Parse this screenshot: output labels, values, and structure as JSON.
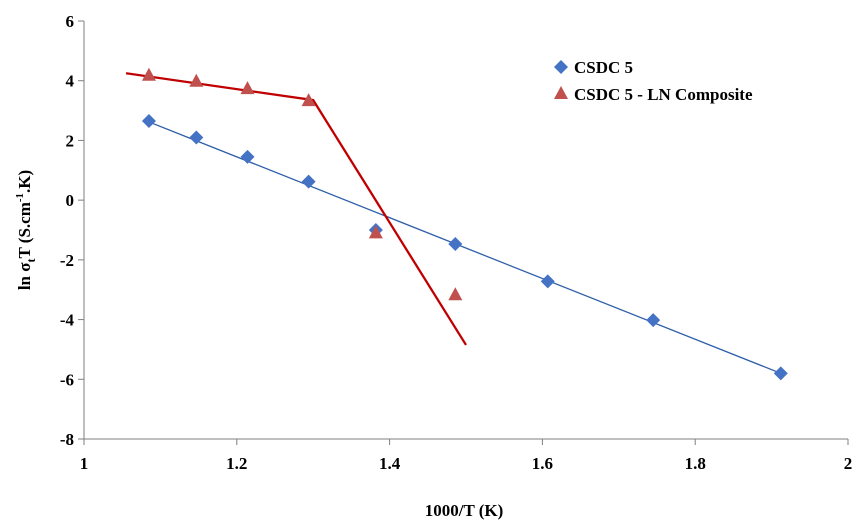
{
  "chart_data": {
    "type": "scatter",
    "xlabel": "1000/T (K)",
    "ylabel": {
      "prefix": "ln σ",
      "sub": "t",
      "mid": "T  (S.cm",
      "sup": "-1",
      "suffix": ".K)"
    },
    "xlim": [
      1,
      2
    ],
    "ylim": [
      -8,
      6
    ],
    "x_ticks": [
      1,
      1.2,
      1.4,
      1.6,
      1.8,
      2
    ],
    "x_tick_labels": [
      "1",
      "1.2",
      "1.4",
      "1.6",
      "1.8",
      "2"
    ],
    "y_ticks": [
      -8,
      -6,
      -4,
      -2,
      0,
      2,
      4,
      6
    ],
    "y_tick_labels": [
      "-8",
      "-6",
      "-4",
      "-2",
      "0",
      "2",
      "4",
      "6"
    ],
    "grid": false,
    "legend_position": "top-right",
    "series": [
      {
        "name": "CSDC 5",
        "marker": "diamond",
        "color": "#4472C4",
        "line_color": "#2E5FA8",
        "x": [
          1.085,
          1.147,
          1.214,
          1.294,
          1.382,
          1.486,
          1.607,
          1.745,
          1.912
        ],
        "y": [
          2.65,
          2.1,
          1.45,
          0.62,
          -1.0,
          -1.47,
          -2.72,
          -4.02,
          -5.8
        ],
        "fit_line": {
          "x": [
            1.085,
            1.912
          ],
          "y": [
            2.62,
            -5.8
          ]
        }
      },
      {
        "name": "CSDC 5 - LN Composite",
        "marker": "triangle",
        "color": "#C0504D",
        "line_color": "#C00000",
        "x": [
          1.085,
          1.147,
          1.214,
          1.294,
          1.382,
          1.486
        ],
        "y": [
          4.2,
          4.0,
          3.75,
          3.35,
          -1.08,
          -3.15
        ],
        "fit_line": {
          "x": [
            1.055,
            1.3,
            1.5
          ],
          "y": [
            4.25,
            3.35,
            -4.85
          ]
        }
      }
    ]
  }
}
